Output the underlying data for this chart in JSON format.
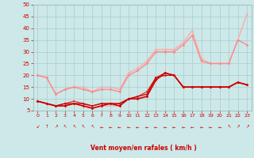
{
  "xlabel": "Vent moyen/en rafales ( km/h )",
  "xlim": [
    -0.5,
    23.5
  ],
  "ylim": [
    5,
    50
  ],
  "yticks": [
    5,
    10,
    15,
    20,
    25,
    30,
    35,
    40,
    45,
    50
  ],
  "xticks": [
    0,
    1,
    2,
    3,
    4,
    5,
    6,
    7,
    8,
    9,
    10,
    11,
    12,
    13,
    14,
    15,
    16,
    17,
    18,
    19,
    20,
    21,
    22,
    23
  ],
  "bg_color": "#cde8e8",
  "grid_color": "#aacccc",
  "series": [
    {
      "x": [
        0,
        1,
        2,
        3,
        4,
        5,
        6,
        7,
        8,
        9,
        10,
        11,
        12,
        13,
        14,
        15,
        16,
        17,
        18,
        19,
        20,
        21,
        22,
        23
      ],
      "y": [
        9,
        8,
        7,
        7,
        8,
        7,
        6,
        7,
        8,
        7,
        10,
        10,
        11,
        18,
        21,
        20,
        15,
        15,
        15,
        15,
        15,
        15,
        17,
        16
      ],
      "color": "#cc0000",
      "lw": 1.2,
      "marker": "D",
      "ms": 1.8,
      "zorder": 5
    },
    {
      "x": [
        0,
        1,
        2,
        3,
        4,
        5,
        6,
        7,
        8,
        9,
        10,
        11,
        12,
        13,
        14,
        15,
        16,
        17,
        18,
        19,
        20,
        21,
        22,
        23
      ],
      "y": [
        9,
        8,
        7,
        8,
        8,
        8,
        7,
        8,
        8,
        8,
        10,
        11,
        12,
        19,
        20,
        20,
        15,
        15,
        15,
        15,
        15,
        15,
        17,
        16
      ],
      "color": "#cc0000",
      "lw": 0.9,
      "marker": "^",
      "ms": 1.8,
      "zorder": 4
    },
    {
      "x": [
        0,
        1,
        2,
        3,
        4,
        5,
        6,
        7,
        8,
        9,
        10,
        11,
        12,
        13,
        14,
        15,
        16,
        17,
        18,
        19,
        20,
        21,
        22,
        23
      ],
      "y": [
        9,
        8,
        7,
        8,
        9,
        8,
        7,
        8,
        8,
        8,
        10,
        11,
        13,
        19,
        21,
        20,
        15,
        15,
        15,
        15,
        15,
        15,
        17,
        16
      ],
      "color": "#dd3333",
      "lw": 0.9,
      "marker": "s",
      "ms": 1.5,
      "zorder": 3
    },
    {
      "x": [
        0,
        1,
        2,
        3,
        4,
        5,
        6,
        7,
        8,
        9,
        10,
        11,
        12,
        13,
        14,
        15,
        16,
        17,
        18,
        19,
        20,
        21,
        22,
        23
      ],
      "y": [
        20,
        19,
        12,
        14,
        15,
        14,
        13,
        14,
        14,
        13,
        20,
        22,
        25,
        30,
        30,
        30,
        33,
        37,
        26,
        25,
        25,
        25,
        35,
        33
      ],
      "color": "#ff8888",
      "lw": 1.0,
      "marker": "D",
      "ms": 1.8,
      "zorder": 2
    },
    {
      "x": [
        0,
        1,
        2,
        3,
        4,
        5,
        6,
        7,
        8,
        9,
        10,
        11,
        12,
        13,
        14,
        15,
        16,
        17,
        18,
        19,
        20,
        21,
        22,
        23
      ],
      "y": [
        20,
        19,
        12,
        14,
        15,
        15,
        13,
        15,
        15,
        14,
        21,
        23,
        26,
        31,
        31,
        31,
        34,
        39,
        27,
        25,
        25,
        25,
        35,
        46
      ],
      "color": "#ffaaaa",
      "lw": 1.0,
      "marker": "D",
      "ms": 1.8,
      "zorder": 1
    },
    {
      "x": [
        0,
        1,
        2,
        3,
        4,
        5,
        6,
        7,
        8,
        9,
        10,
        11,
        12,
        13,
        14,
        15,
        16,
        17,
        18,
        19,
        20,
        21,
        22,
        23
      ],
      "y": [
        9,
        8,
        7,
        7,
        8,
        8,
        6,
        7,
        7,
        7,
        10,
        10,
        11,
        18,
        21,
        20,
        15,
        15,
        15,
        15,
        15,
        15,
        17,
        16
      ],
      "color": "#ff9999",
      "lw": 0.7,
      "marker": null,
      "ms": 0,
      "zorder": 1
    }
  ],
  "wind_arrows": [
    "↙",
    "↑",
    "↗",
    "↖",
    "↖",
    "↖",
    "↖",
    "←",
    "←",
    "←",
    "←",
    "←",
    "←",
    "←",
    "←",
    "←",
    "←",
    "←",
    "←",
    "←",
    "←",
    "↖",
    "↗",
    "↗"
  ]
}
